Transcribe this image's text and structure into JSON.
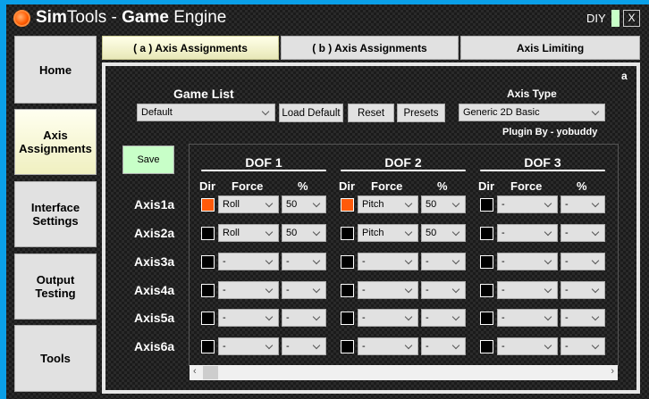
{
  "window": {
    "title_bold1": "Sim",
    "title_1": "Tools - ",
    "title_bold2": "Game",
    "title_2": " Engine",
    "diy": "DIY",
    "close": "X"
  },
  "sidebar": {
    "items": [
      {
        "label": "Home"
      },
      {
        "label": "Axis Assignments",
        "active": true
      },
      {
        "label": "Interface Settings"
      },
      {
        "label": "Output Testing"
      },
      {
        "label": "Tools"
      }
    ]
  },
  "tabs": [
    {
      "label": "( a ) Axis Assignments",
      "active": true
    },
    {
      "label": "( b ) Axis Assignments"
    },
    {
      "label": "Axis Limiting"
    }
  ],
  "panel": {
    "corner": "a",
    "game_list_label": "Game List",
    "game_list_value": "Default",
    "load_default": "Load Default",
    "reset": "Reset",
    "presets": "Presets",
    "axis_type_label": "Axis Type",
    "axis_type_value": "Generic 2D Basic",
    "plugin_by": "Plugin By - yobuddy",
    "save": "Save"
  },
  "grid": {
    "dofs": [
      "DOF 1",
      "DOF 2",
      "DOF 3"
    ],
    "col_dir": "Dir",
    "col_force": "Force",
    "col_pct": "%",
    "rows": [
      {
        "axis": "Axis1a",
        "cells": [
          {
            "dir": true,
            "force": "Roll",
            "pct": "50"
          },
          {
            "dir": true,
            "force": "Pitch",
            "pct": "50"
          },
          {
            "dir": false,
            "force": "-",
            "pct": "-"
          }
        ]
      },
      {
        "axis": "Axis2a",
        "cells": [
          {
            "dir": false,
            "force": "Roll",
            "pct": "50"
          },
          {
            "dir": false,
            "force": "Pitch",
            "pct": "50"
          },
          {
            "dir": false,
            "force": "-",
            "pct": "-"
          }
        ]
      },
      {
        "axis": "Axis3a",
        "cells": [
          {
            "dir": false,
            "force": "-",
            "pct": "-"
          },
          {
            "dir": false,
            "force": "-",
            "pct": "-"
          },
          {
            "dir": false,
            "force": "-",
            "pct": "-"
          }
        ]
      },
      {
        "axis": "Axis4a",
        "cells": [
          {
            "dir": false,
            "force": "-",
            "pct": "-"
          },
          {
            "dir": false,
            "force": "-",
            "pct": "-"
          },
          {
            "dir": false,
            "force": "-",
            "pct": "-"
          }
        ]
      },
      {
        "axis": "Axis5a",
        "cells": [
          {
            "dir": false,
            "force": "-",
            "pct": "-"
          },
          {
            "dir": false,
            "force": "-",
            "pct": "-"
          },
          {
            "dir": false,
            "force": "-",
            "pct": "-"
          }
        ]
      },
      {
        "axis": "Axis6a",
        "cells": [
          {
            "dir": false,
            "force": "-",
            "pct": "-"
          },
          {
            "dir": false,
            "force": "-",
            "pct": "-"
          },
          {
            "dir": false,
            "force": "-",
            "pct": "-"
          }
        ]
      }
    ]
  },
  "colors": {
    "accent_orange": "#ff5a0a",
    "save_green": "#c8ffc8",
    "border_blue": "#0aa0e8"
  }
}
